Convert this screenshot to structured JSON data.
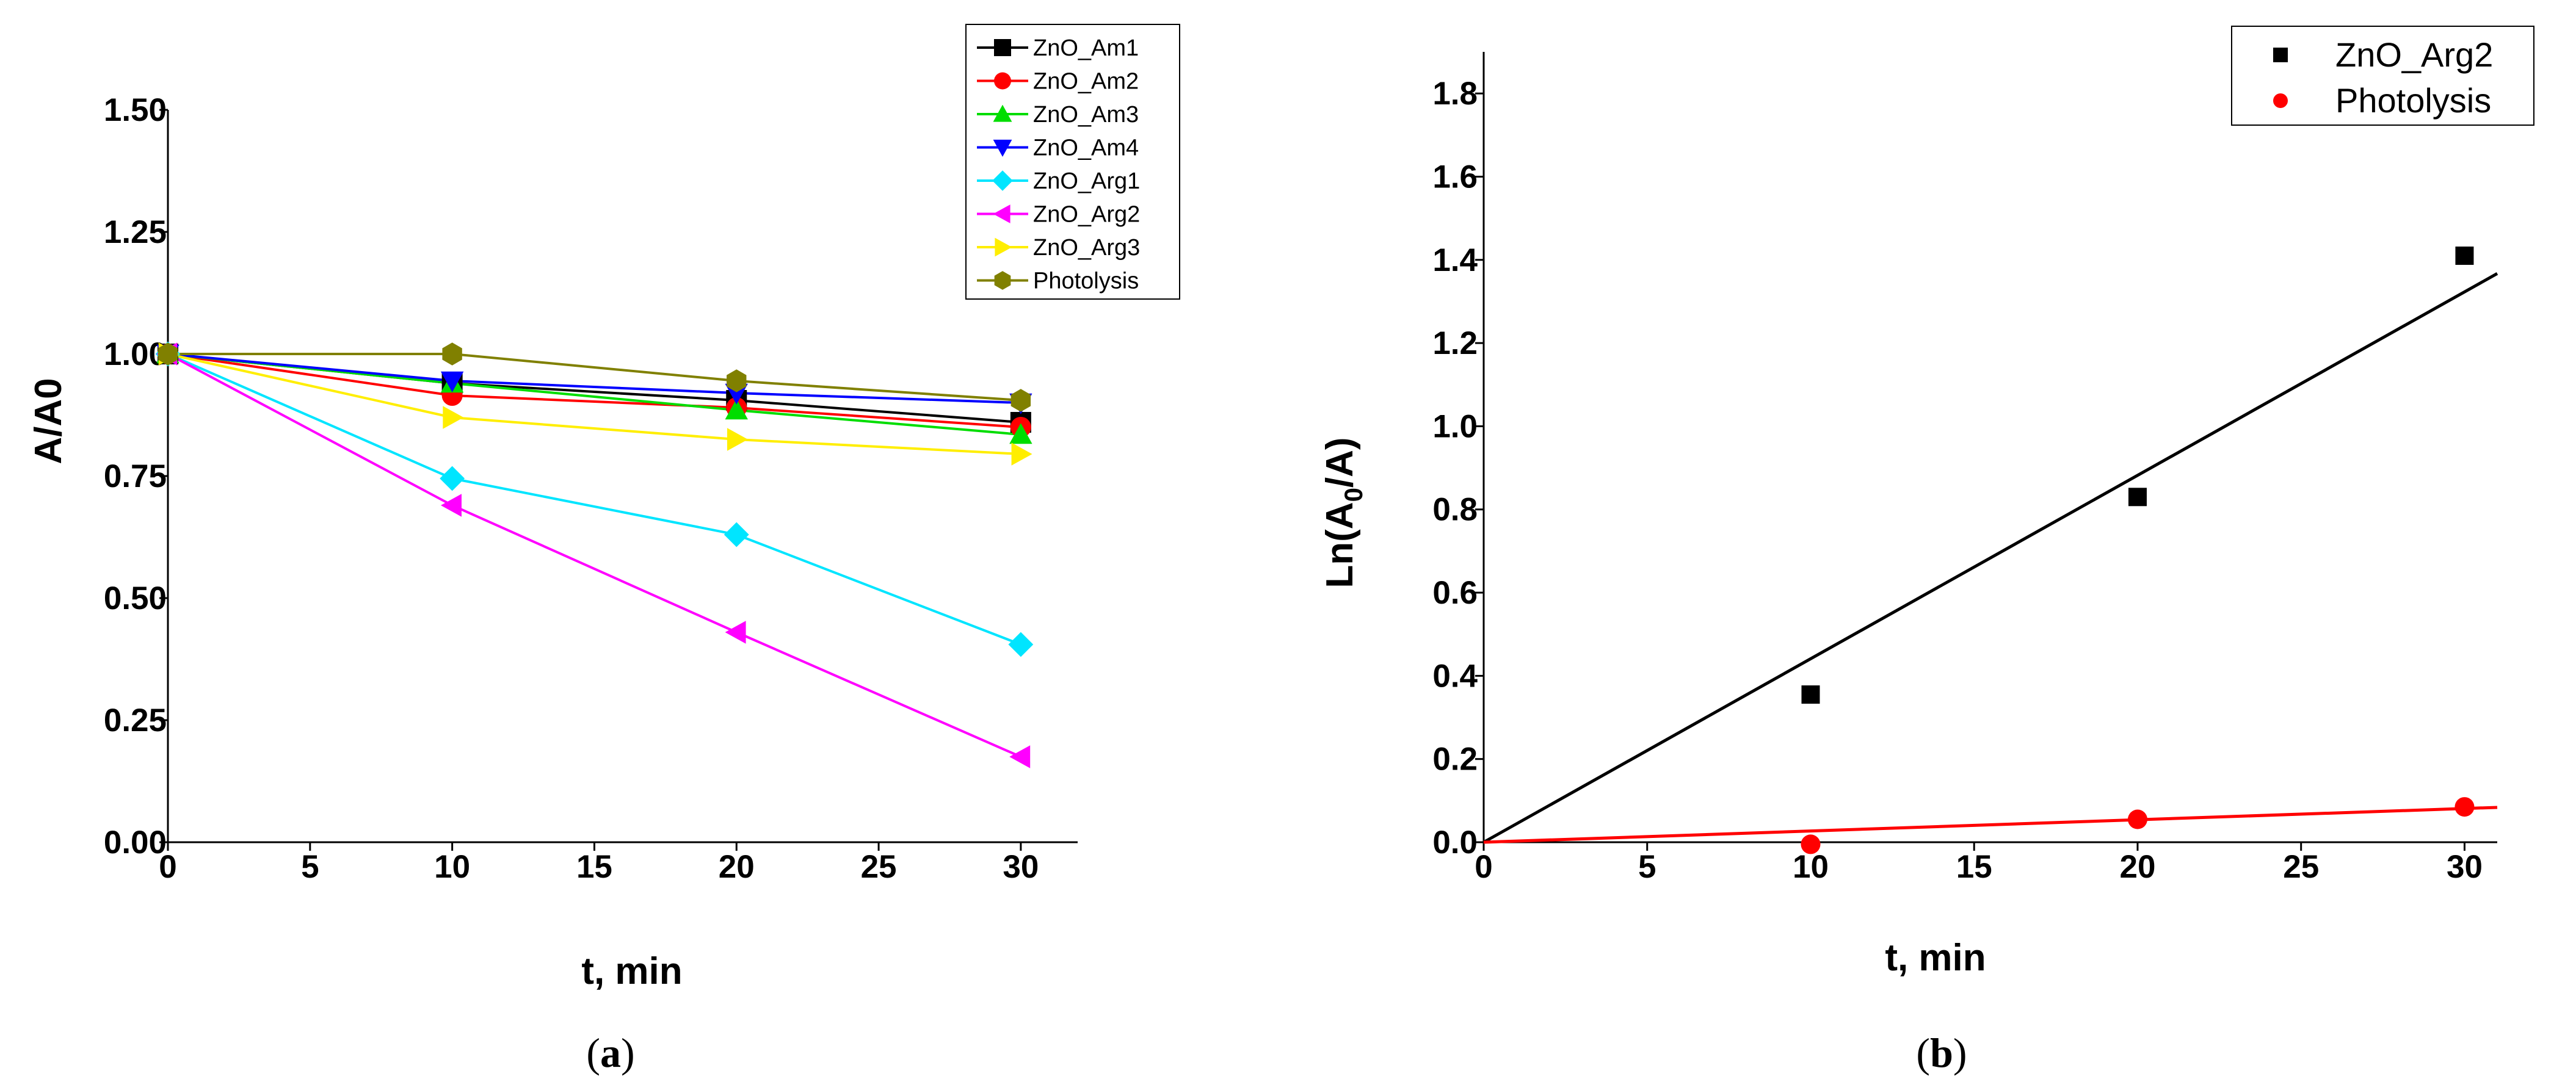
{
  "chart_data": [
    {
      "type": "line",
      "panel_label": "a",
      "xlabel": "t, min",
      "ylabel": "A/A0",
      "xlim": [
        0,
        32
      ],
      "ylim": [
        0,
        1.5
      ],
      "xticks": [
        "0",
        "5",
        "10",
        "15",
        "20",
        "25",
        "30"
      ],
      "yticks": [
        "0.00",
        "0.25",
        "0.50",
        "0.75",
        "1.00",
        "1.25",
        "1.50"
      ],
      "legend_position": "top-right",
      "x": [
        0,
        10,
        20,
        30
      ],
      "series": [
        {
          "name": "ZnO_Am1",
          "color": "#000000",
          "marker": "square",
          "values": [
            1.0,
            0.94,
            0.905,
            0.86
          ]
        },
        {
          "name": "ZnO_Am2",
          "color": "#ff0000",
          "marker": "circle",
          "values": [
            1.0,
            0.915,
            0.89,
            0.85
          ]
        },
        {
          "name": "ZnO_Am3",
          "color": "#00dd00",
          "marker": "triangle-up",
          "values": [
            1.0,
            0.94,
            0.885,
            0.835
          ]
        },
        {
          "name": "ZnO_Am4",
          "color": "#0000ff",
          "marker": "triangle-down",
          "values": [
            1.0,
            0.945,
            0.92,
            0.9
          ]
        },
        {
          "name": "ZnO_Arg1",
          "color": "#00e5ff",
          "marker": "diamond",
          "values": [
            1.0,
            0.745,
            0.63,
            0.405
          ]
        },
        {
          "name": "ZnO_Arg2",
          "color": "#ff00ff",
          "marker": "triangle-left",
          "values": [
            1.0,
            0.69,
            0.43,
            0.175
          ]
        },
        {
          "name": "ZnO_Arg3",
          "color": "#ffee00",
          "marker": "triangle-right",
          "values": [
            1.0,
            0.87,
            0.825,
            0.795
          ]
        },
        {
          "name": "Photolysis",
          "color": "#808000",
          "marker": "hexagon",
          "values": [
            1.0,
            1.0,
            0.945,
            0.905
          ]
        }
      ]
    },
    {
      "type": "scatter",
      "panel_label": "b",
      "xlabel": "t, min",
      "ylabel": "Ln(A0/A)",
      "xlim": [
        0,
        31
      ],
      "ylim": [
        0,
        1.9
      ],
      "xticks": [
        "0",
        "5",
        "10",
        "15",
        "20",
        "25",
        "30"
      ],
      "yticks": [
        "0.0",
        "0.2",
        "0.4",
        "0.6",
        "0.8",
        "1.0",
        "1.2",
        "1.4",
        "1.6",
        "1.8"
      ],
      "legend_position": "top-right",
      "series": [
        {
          "name": "ZnO_Arg2",
          "color": "#000000",
          "marker": "square",
          "x": [
            10,
            20,
            30
          ],
          "values": [
            0.355,
            0.83,
            1.41
          ],
          "fit": {
            "slope": 0.0441,
            "intercept": 0,
            "x_end": 31
          }
        },
        {
          "name": "Photolysis",
          "color": "#ff0000",
          "marker": "circle",
          "x": [
            10,
            20,
            30
          ],
          "values": [
            -0.005,
            0.055,
            0.085
          ],
          "fit": {
            "slope": 0.0027,
            "intercept": 0,
            "x_end": 31
          }
        }
      ]
    }
  ]
}
